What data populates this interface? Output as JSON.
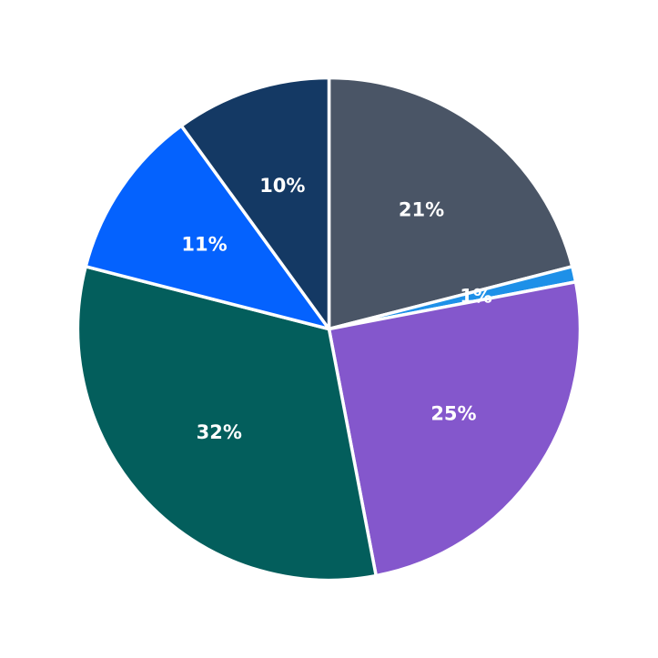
{
  "chart_data": {
    "type": "pie",
    "start_angle": 90,
    "direction": "clockwise",
    "title": "",
    "legend": "none",
    "slices": [
      {
        "label": "21%",
        "value": 21,
        "color": "#4a5566"
      },
      {
        "label": "1%",
        "value": 1,
        "color": "#1e90e8"
      },
      {
        "label": "25%",
        "value": 25,
        "color": "#8457cc"
      },
      {
        "label": "32%",
        "value": 32,
        "color": "#035e5c"
      },
      {
        "label": "11%",
        "value": 11,
        "color": "#0462fe"
      },
      {
        "label": "10%",
        "value": 10,
        "color": "#143964"
      }
    ]
  }
}
